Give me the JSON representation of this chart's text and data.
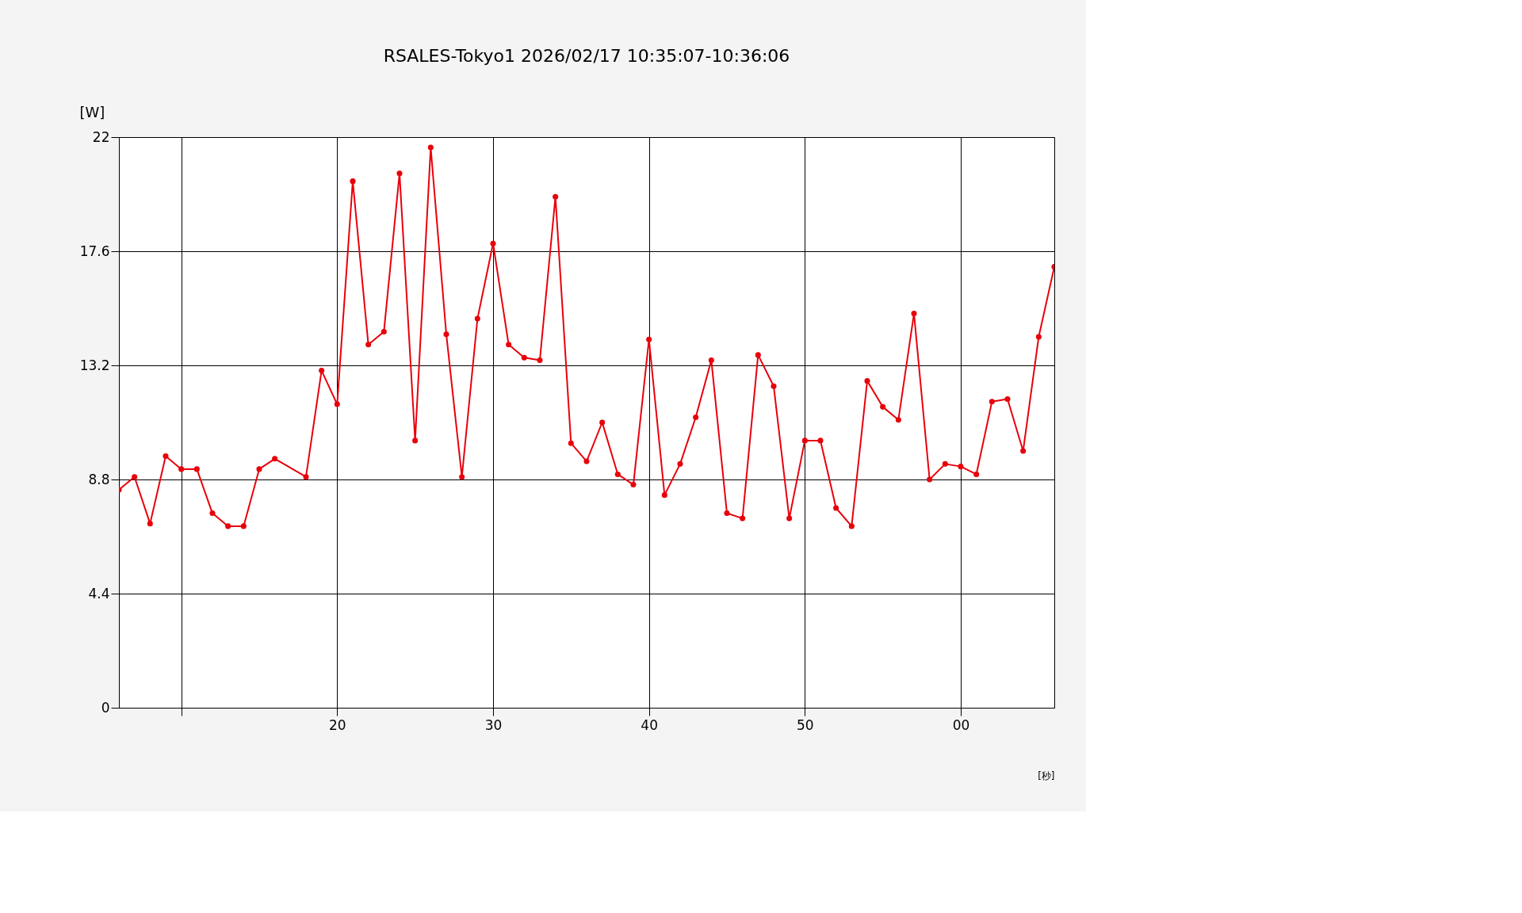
{
  "chart_data": {
    "type": "line",
    "title": "RSALES-Tokyo1 2026/02/17  10:35:07-10:36:06",
    "xlabel": "[秒]",
    "ylabel": "[W]",
    "x": [
      "2026-02-17T10:35:06",
      "2026-02-17T10:35:07",
      "2026-02-17T10:35:08",
      "2026-02-17T10:35:09",
      "2026-02-17T10:35:10",
      "2026-02-17T10:35:11",
      "2026-02-17T10:35:12",
      "2026-02-17T10:35:13",
      "2026-02-17T10:35:14",
      "2026-02-17T10:35:15",
      "2026-02-17T10:35:16",
      "2026-02-17T10:35:18",
      "2026-02-17T10:35:19",
      "2026-02-17T10:35:20",
      "2026-02-17T10:35:21",
      "2026-02-17T10:35:22",
      "2026-02-17T10:35:23",
      "2026-02-17T10:35:24",
      "2026-02-17T10:35:25",
      "2026-02-17T10:35:26",
      "2026-02-17T10:35:27",
      "2026-02-17T10:35:28",
      "2026-02-17T10:35:29",
      "2026-02-17T10:35:30",
      "2026-02-17T10:35:31",
      "2026-02-17T10:35:32",
      "2026-02-17T10:35:33",
      "2026-02-17T10:35:34",
      "2026-02-17T10:35:35",
      "2026-02-17T10:35:36",
      "2026-02-17T10:35:37",
      "2026-02-17T10:35:38",
      "2026-02-17T10:35:39",
      "2026-02-17T10:35:40",
      "2026-02-17T10:35:41",
      "2026-02-17T10:35:42",
      "2026-02-17T10:35:43",
      "2026-02-17T10:35:44",
      "2026-02-17T10:35:45",
      "2026-02-17T10:35:46",
      "2026-02-17T10:35:47",
      "2026-02-17T10:35:48",
      "2026-02-17T10:35:49",
      "2026-02-17T10:35:50",
      "2026-02-17T10:35:51",
      "2026-02-17T10:35:52",
      "2026-02-17T10:35:53",
      "2026-02-17T10:35:54",
      "2026-02-17T10:35:55",
      "2026-02-17T10:35:56",
      "2026-02-17T10:35:57",
      "2026-02-17T10:35:58",
      "2026-02-17T10:35:59",
      "2026-02-17T10:36:00",
      "2026-02-17T10:36:01",
      "2026-02-17T10:36:02",
      "2026-02-17T10:36:03",
      "2026-02-17T10:36:04",
      "2026-02-17T10:36:05",
      "2026-02-17T10:36:06"
    ],
    "series": [
      {
        "color": "#e8000b",
        "values": [
          8.4,
          8.9,
          7.1,
          9.7,
          9.2,
          9.2,
          7.5,
          7.0,
          7.0,
          9.2,
          9.6,
          8.9,
          13.0,
          11.7,
          20.3,
          14.0,
          14.5,
          20.6,
          10.3,
          21.6,
          14.4,
          8.9,
          15.0,
          17.9,
          14.0,
          13.5,
          13.4,
          19.7,
          10.2,
          9.5,
          11.0,
          9.0,
          8.6,
          14.2,
          8.2,
          9.4,
          11.2,
          13.4,
          7.5,
          7.3,
          13.6,
          12.4,
          7.3,
          10.3,
          10.3,
          7.7,
          7.0,
          12.6,
          11.6,
          11.1,
          15.2,
          8.8,
          9.4,
          9.3,
          9.0,
          11.8,
          11.9,
          9.9,
          14.3,
          17.0
        ]
      }
    ],
    "xlim": [
      "2026-02-17T10:35:06",
      "2026-02-17T10:36:06"
    ],
    "xticks": [
      {
        "value": "2026-02-17T10:35:10",
        "label": null
      },
      {
        "value": "2026-02-17T10:35:20",
        "label": "20"
      },
      {
        "value": "2026-02-17T10:35:30",
        "label": "30"
      },
      {
        "value": "2026-02-17T10:35:40",
        "label": "40"
      },
      {
        "value": "2026-02-17T10:35:50",
        "label": "50"
      },
      {
        "value": "2026-02-17T10:36:00",
        "label": "00"
      }
    ],
    "ylim": [
      0,
      22
    ],
    "yticks": [
      0,
      4.4,
      8.8,
      13.2,
      17.6,
      22
    ],
    "grid": true,
    "marker": "circle",
    "line_style": "solid"
  }
}
